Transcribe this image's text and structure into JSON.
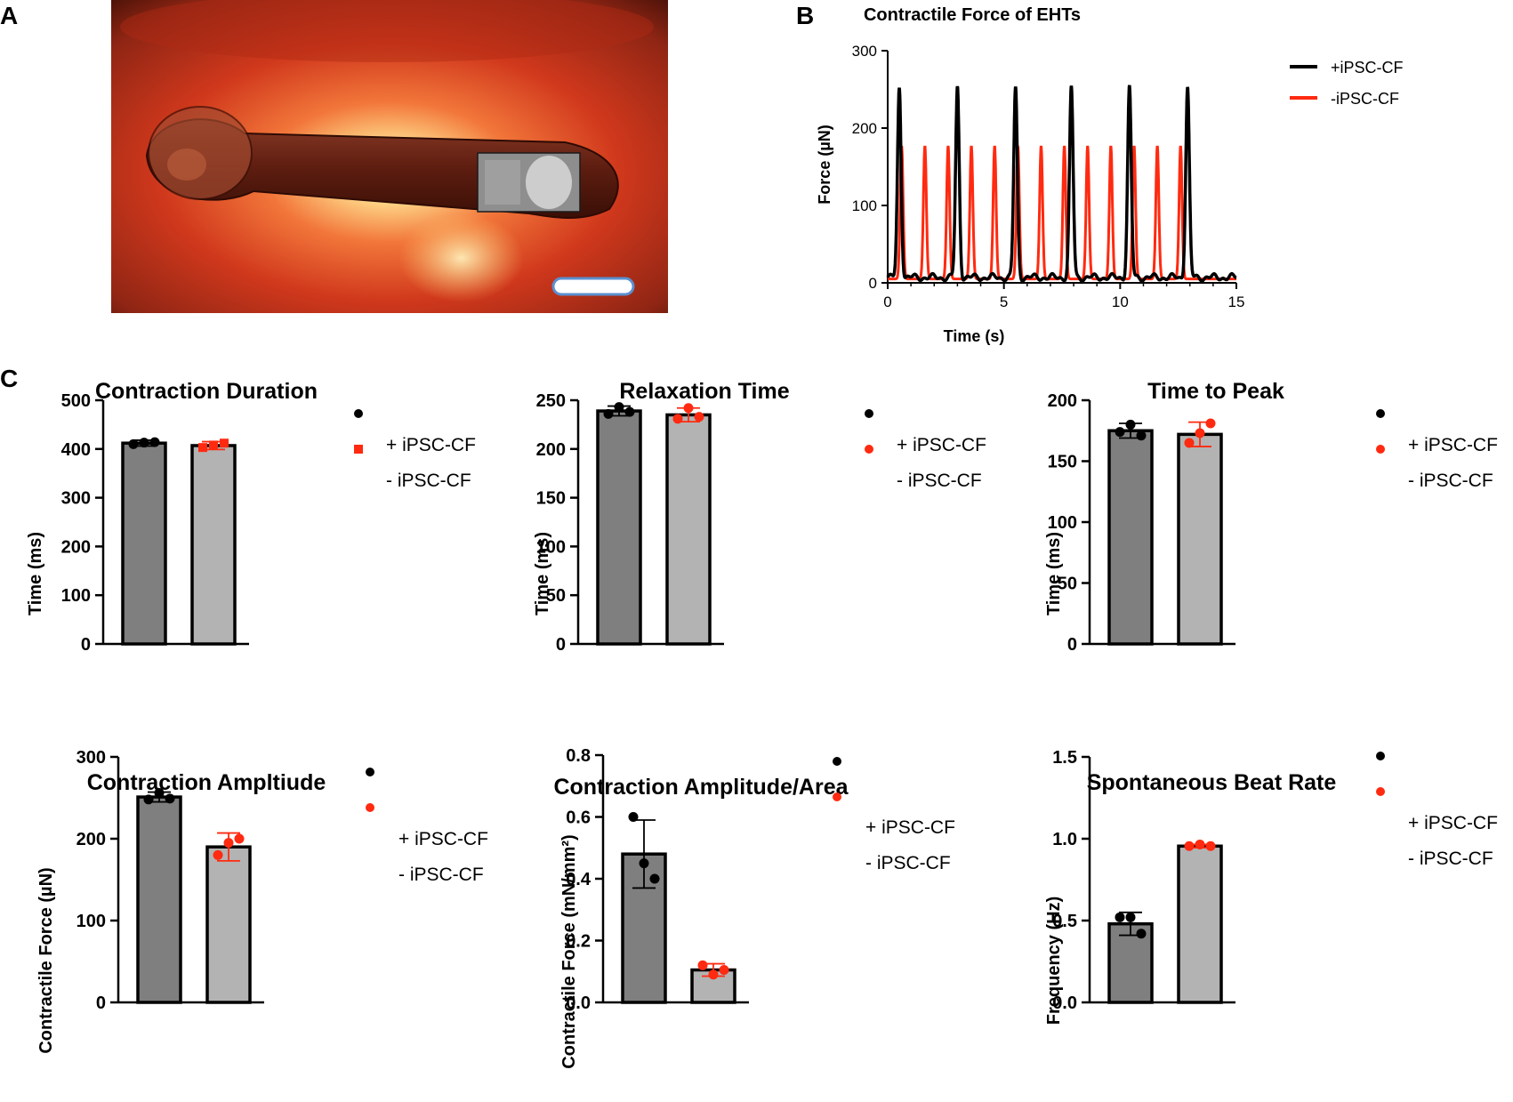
{
  "panels": {
    "a": "A",
    "b": "B",
    "c": "C"
  },
  "photo": {
    "description_colors": {
      "background": "#c4331d",
      "glow": "#fff7c8",
      "tissue": "#6b2417"
    }
  },
  "colors": {
    "black_series": "#000000",
    "red_series": "#ff2a10",
    "bar_dark": "#7f7f7f",
    "bar_light": "#b3b3b3",
    "text": "#000000"
  },
  "chart_data": [
    {
      "id": "trace",
      "type": "line",
      "title": "Contractile Force of EHTs",
      "xlabel": "Time (s)",
      "ylabel": "Force (µN)",
      "xlim": [
        0,
        15
      ],
      "ylim": [
        0,
        300
      ],
      "xticks": [
        "0",
        "5",
        "10",
        "15"
      ],
      "yticks": [
        "0",
        "100",
        "200",
        "300"
      ],
      "legend_position": "top-right",
      "series": [
        {
          "name": "+iPSC-CF",
          "color": "#000000",
          "peak_times": [
            0.5,
            3.0,
            5.5,
            7.9,
            10.4,
            12.9
          ],
          "peak_value": 252,
          "baseline": 7
        },
        {
          "name": "-iPSC-CF",
          "color": "#ff2a10",
          "peak_times": [
            0.6,
            1.6,
            2.6,
            3.6,
            4.6,
            5.6,
            6.6,
            7.6,
            8.6,
            9.6,
            10.6,
            11.6,
            12.6
          ],
          "peak_value": 177,
          "baseline": 5
        }
      ]
    },
    {
      "id": "duration",
      "type": "bar",
      "title": "Contraction Duration",
      "ylabel": "Time (ms)",
      "ylim": [
        0,
        500
      ],
      "yticks": [
        "0",
        "100",
        "200",
        "300",
        "400",
        "500"
      ],
      "legend": [
        "+ iPSC-CF",
        "- iPSC-CF"
      ],
      "legend_position": "top-right",
      "red_marker": "square",
      "bars": [
        {
          "name": "+ iPSC-CF",
          "value": 412,
          "error": 6,
          "points": [
            410,
            413,
            414
          ]
        },
        {
          "name": "- iPSC-CF",
          "value": 407,
          "error": 8,
          "points": [
            403,
            408,
            412
          ]
        }
      ]
    },
    {
      "id": "relax",
      "type": "bar",
      "title": "Relaxation Time",
      "ylabel": "Time (ms)",
      "ylim": [
        0,
        250
      ],
      "yticks": [
        "0",
        "50",
        "100",
        "150",
        "200",
        "250"
      ],
      "legend": [
        "+ iPSC-CF",
        "- iPSC-CF"
      ],
      "legend_position": "top-right",
      "red_marker": "circle",
      "bars": [
        {
          "name": "+ iPSC-CF",
          "value": 239,
          "error": 5,
          "points": [
            236,
            243,
            238
          ]
        },
        {
          "name": "- iPSC-CF",
          "value": 235,
          "error": 7,
          "points": [
            231,
            242,
            233
          ]
        }
      ]
    },
    {
      "id": "peak",
      "type": "bar",
      "title": "Time to Peak",
      "ylabel": "Time (ms)",
      "ylim": [
        0,
        200
      ],
      "yticks": [
        "0",
        "50",
        "100",
        "150",
        "200"
      ],
      "legend": [
        "+ iPSC-CF",
        "- iPSC-CF"
      ],
      "legend_position": "top-right",
      "red_marker": "circle",
      "bars": [
        {
          "name": "+ iPSC-CF",
          "value": 175,
          "error": 6,
          "points": [
            174,
            180,
            171
          ]
        },
        {
          "name": "- iPSC-CF",
          "value": 172,
          "error": 10,
          "points": [
            165,
            173,
            181
          ]
        }
      ]
    },
    {
      "id": "amp",
      "type": "bar",
      "title": "Contraction Ampltiude",
      "ylabel": "Contractile Force (µN)",
      "ylim": [
        0,
        300
      ],
      "yticks": [
        "0",
        "100",
        "200",
        "300"
      ],
      "legend": [
        "+ iPSC-CF",
        "- iPSC-CF"
      ],
      "legend_position": "top-right",
      "red_marker": "circle",
      "bars": [
        {
          "name": "+ iPSC-CF",
          "value": 251,
          "error": 6,
          "points": [
            248,
            256,
            249
          ]
        },
        {
          "name": "- iPSC-CF",
          "value": 190,
          "error": 17,
          "points": [
            180,
            195,
            200
          ]
        }
      ]
    },
    {
      "id": "amparea",
      "type": "bar",
      "title": "Contraction Amplitude/Area",
      "ylabel": "Contractile Force (mN/mm²)",
      "ylim": [
        0,
        0.8
      ],
      "yticks": [
        "0.0",
        "0.2",
        "0.4",
        "0.6",
        "0.8"
      ],
      "legend": [
        "+ iPSC-CF",
        "- iPSC-CF"
      ],
      "legend_position": "top-right",
      "red_marker": "circle",
      "bars": [
        {
          "name": "+ iPSC-CF",
          "value": 0.48,
          "error": 0.11,
          "points": [
            0.6,
            0.45,
            0.4
          ]
        },
        {
          "name": "- iPSC-CF",
          "value": 0.105,
          "error": 0.02,
          "points": [
            0.12,
            0.09,
            0.105
          ]
        }
      ]
    },
    {
      "id": "rate",
      "type": "bar",
      "title": "Spontaneous Beat Rate",
      "ylabel": "Frequency (Hz)",
      "ylim": [
        0,
        1.5
      ],
      "yticks": [
        "0.0",
        "0.5",
        "1.0",
        "1.5"
      ],
      "legend": [
        "+ iPSC-CF",
        "- iPSC-CF"
      ],
      "legend_position": "top-right",
      "red_marker": "circle",
      "bars": [
        {
          "name": "+ iPSC-CF",
          "value": 0.48,
          "error": 0.07,
          "points": [
            0.52,
            0.52,
            0.42
          ]
        },
        {
          "name": "- iPSC-CF",
          "value": 0.955,
          "error": 0.01,
          "points": [
            0.955,
            0.965,
            0.955
          ]
        }
      ]
    }
  ]
}
